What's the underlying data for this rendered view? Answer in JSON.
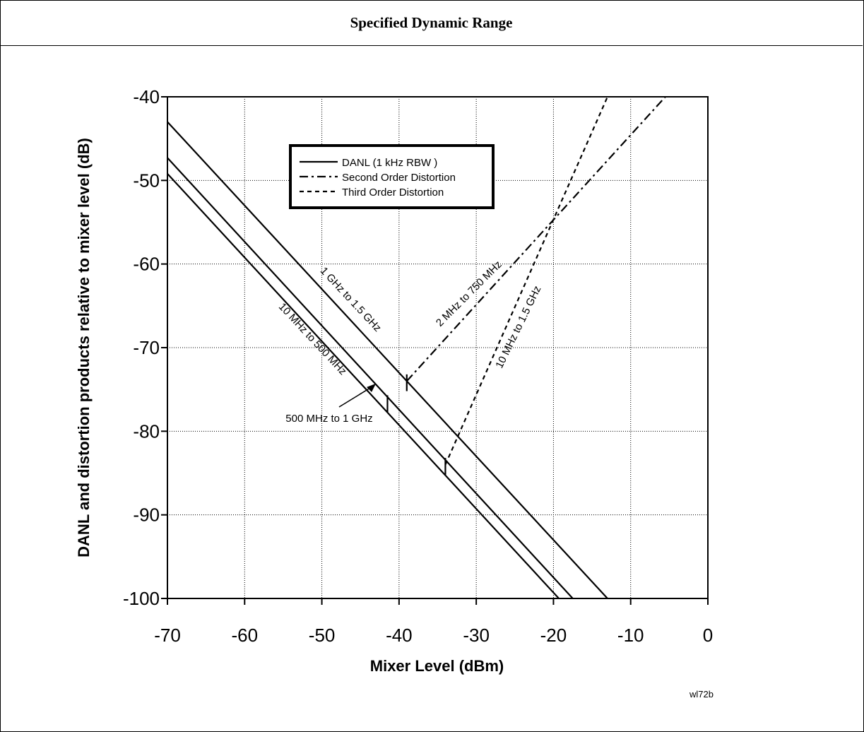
{
  "header": {
    "title": "Specified Dynamic Range"
  },
  "figure_id": "wl72b",
  "chart_data": {
    "type": "line",
    "xlabel": "Mixer Level (dBm)",
    "ylabel": "DANL and distortion products relative to mixer level (dB)",
    "xlim": [
      -70,
      0
    ],
    "ylim": [
      -100,
      -40
    ],
    "xticks": [
      -70,
      -60,
      -50,
      -40,
      -30,
      -20,
      -10,
      0
    ],
    "yticks": [
      -40,
      -50,
      -60,
      -70,
      -80,
      -90,
      -100
    ],
    "grid": true,
    "legend_position": "top-left",
    "legend": [
      {
        "label": "DANL (1 kHz RBW )",
        "style": "solid"
      },
      {
        "label": "Second Order Distortion",
        "style": "dash-dot"
      },
      {
        "label": "Third Order Distortion",
        "style": "dashed"
      }
    ],
    "series": [
      {
        "kind": "DANL",
        "label": "1 GHz to 1.5 GHz",
        "style": "solid",
        "x": [
          -70,
          -13
        ],
        "y": [
          -43,
          -100
        ]
      },
      {
        "kind": "DANL",
        "label": "500 MHz to 1 GHz",
        "style": "solid",
        "x": [
          -70,
          -17.5
        ],
        "y": [
          -47.3,
          -100
        ]
      },
      {
        "kind": "DANL",
        "label": "10 MHz to 500 MHz",
        "style": "solid",
        "x": [
          -70,
          -19.3
        ],
        "y": [
          -49.2,
          -100
        ]
      },
      {
        "kind": "Second Order Distortion",
        "label": "2 MHz to 750 MHz",
        "style": "dash-dot",
        "x": [
          -39,
          -5.5
        ],
        "y": [
          -74,
          -40
        ]
      },
      {
        "kind": "Third Order Distortion",
        "label": "10 MHz to 1.5 GHz",
        "style": "dashed",
        "x": [
          -34,
          -13
        ],
        "y": [
          -84,
          -40
        ]
      }
    ],
    "segment_markers": [
      {
        "x": -39,
        "y": [
          -73.2,
          -75.2
        ]
      },
      {
        "x": -41.5,
        "y": [
          -75.7,
          -77.7
        ]
      },
      {
        "x": -34,
        "y": [
          -83.2,
          -85.2
        ]
      }
    ],
    "annotations": [
      {
        "text": "1 GHz to 1.5 GHz",
        "target": "DANL 1 GHz to 1.5 GHz"
      },
      {
        "text": "10 MHz to 500 MHz",
        "target": "DANL 10 MHz to 500 MHz"
      },
      {
        "text": "2 MHz to 750 MHz",
        "target": "Second Order Distortion"
      },
      {
        "text": "10 MHz to 1.5 GHz",
        "target": "Third Order Distortion"
      },
      {
        "text": "500 MHz to 1 GHz",
        "target": "DANL 500 MHz to 1 GHz",
        "arrow_to": [
          -43,
          -74.3
        ]
      }
    ]
  }
}
